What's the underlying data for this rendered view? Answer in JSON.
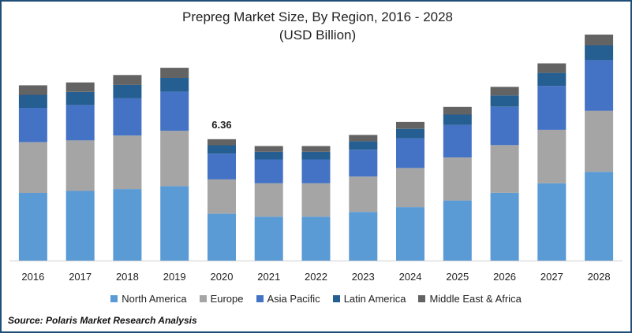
{
  "chart_data": {
    "type": "bar",
    "stacked": true,
    "title": "Prepreg Market Size, By Region, 2016 - 2028",
    "subtitle": "(USD Billion)",
    "categories": [
      "2016",
      "2017",
      "2018",
      "2019",
      "2020",
      "2021",
      "2022",
      "2023",
      "2024",
      "2025",
      "2026",
      "2027",
      "2028"
    ],
    "series": [
      {
        "name": "North America",
        "color": "#5b9bd5",
        "values": [
          3.55,
          3.65,
          3.75,
          3.9,
          2.45,
          2.3,
          2.3,
          2.55,
          2.8,
          3.15,
          3.55,
          4.05,
          4.65
        ]
      },
      {
        "name": "Europe",
        "color": "#a5a5a5",
        "values": [
          2.65,
          2.65,
          2.8,
          2.9,
          1.8,
          1.75,
          1.75,
          1.85,
          2.05,
          2.25,
          2.5,
          2.8,
          3.2
        ]
      },
      {
        "name": "Asia Pacific",
        "color": "#4472c4",
        "values": [
          1.8,
          1.85,
          1.95,
          2.05,
          1.35,
          1.25,
          1.25,
          1.4,
          1.55,
          1.7,
          2.0,
          2.3,
          2.65
        ]
      },
      {
        "name": "Latin America",
        "color": "#255e91",
        "values": [
          0.68,
          0.68,
          0.7,
          0.72,
          0.44,
          0.4,
          0.4,
          0.45,
          0.5,
          0.55,
          0.6,
          0.68,
          0.78
        ]
      },
      {
        "name": "Middle East & Africa",
        "color": "#636363",
        "values": [
          0.5,
          0.5,
          0.52,
          0.53,
          0.32,
          0.3,
          0.3,
          0.33,
          0.36,
          0.4,
          0.45,
          0.5,
          0.56
        ]
      }
    ],
    "annotations": [
      {
        "category": "2020",
        "label": "6.36"
      }
    ],
    "ylim": [
      0,
      12
    ],
    "gridlines": false,
    "legend_position": "bottom"
  },
  "source": "Source: Polaris Market Research Analysis"
}
